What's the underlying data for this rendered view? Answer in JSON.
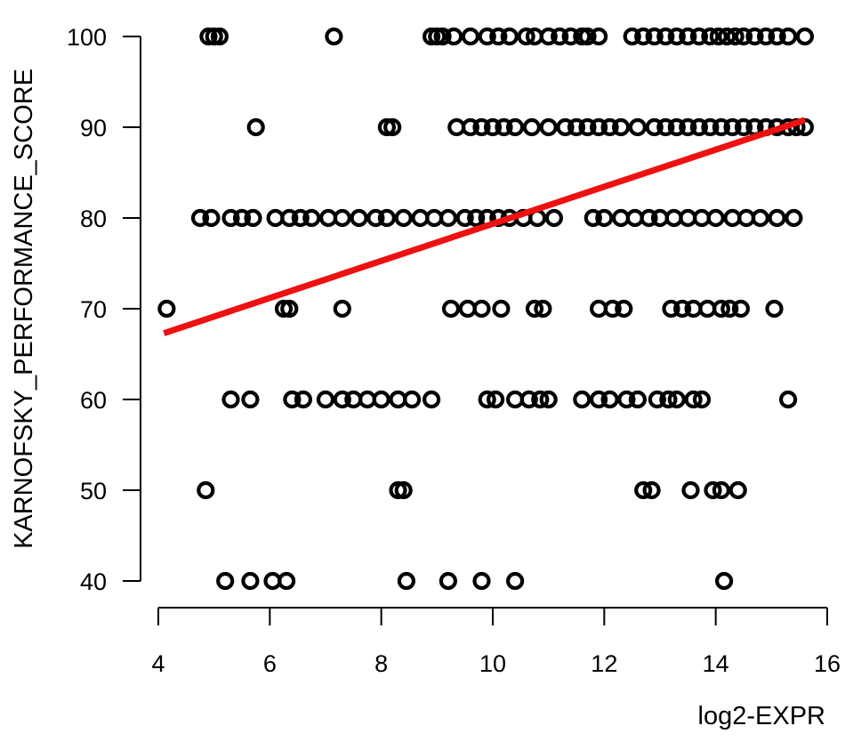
{
  "chart_data": {
    "type": "scatter",
    "title": "",
    "xlabel": "log2-EXPR",
    "ylabel": "KARNOFSKY_PERFORMANCE_SCORE",
    "xlim": [
      4,
      16
    ],
    "ylim": [
      40,
      100
    ],
    "x_ticks": [
      "4",
      "6",
      "8",
      "10",
      "12",
      "14",
      "16"
    ],
    "y_ticks": [
      "40",
      "50",
      "60",
      "70",
      "80",
      "90",
      "100"
    ],
    "grid": false,
    "point_color": "#000000",
    "line_color": "#ee1111",
    "fit_line": {
      "x": [
        4.1,
        15.6
      ],
      "y": [
        67.3,
        90.8
      ]
    },
    "points": [
      {
        "x": 4.9,
        "y": 100
      },
      {
        "x": 5.0,
        "y": 100
      },
      {
        "x": 5.1,
        "y": 100
      },
      {
        "x": 7.15,
        "y": 100
      },
      {
        "x": 8.9,
        "y": 100
      },
      {
        "x": 9.0,
        "y": 100
      },
      {
        "x": 9.1,
        "y": 100
      },
      {
        "x": 9.3,
        "y": 100
      },
      {
        "x": 9.6,
        "y": 100
      },
      {
        "x": 9.9,
        "y": 100
      },
      {
        "x": 10.1,
        "y": 100
      },
      {
        "x": 10.3,
        "y": 100
      },
      {
        "x": 10.6,
        "y": 100
      },
      {
        "x": 10.75,
        "y": 100
      },
      {
        "x": 11.0,
        "y": 100
      },
      {
        "x": 11.2,
        "y": 100
      },
      {
        "x": 11.4,
        "y": 100
      },
      {
        "x": 11.6,
        "y": 100
      },
      {
        "x": 11.7,
        "y": 100
      },
      {
        "x": 11.9,
        "y": 100
      },
      {
        "x": 12.5,
        "y": 100
      },
      {
        "x": 12.7,
        "y": 100
      },
      {
        "x": 12.9,
        "y": 100
      },
      {
        "x": 13.1,
        "y": 100
      },
      {
        "x": 13.3,
        "y": 100
      },
      {
        "x": 13.5,
        "y": 100
      },
      {
        "x": 13.7,
        "y": 100
      },
      {
        "x": 13.9,
        "y": 100
      },
      {
        "x": 14.05,
        "y": 100
      },
      {
        "x": 14.2,
        "y": 100
      },
      {
        "x": 14.35,
        "y": 100
      },
      {
        "x": 14.5,
        "y": 100
      },
      {
        "x": 14.7,
        "y": 100
      },
      {
        "x": 14.9,
        "y": 100
      },
      {
        "x": 15.1,
        "y": 100
      },
      {
        "x": 15.3,
        "y": 100
      },
      {
        "x": 15.6,
        "y": 100
      },
      {
        "x": 5.75,
        "y": 90
      },
      {
        "x": 8.1,
        "y": 90
      },
      {
        "x": 8.2,
        "y": 90
      },
      {
        "x": 9.35,
        "y": 90
      },
      {
        "x": 9.6,
        "y": 90
      },
      {
        "x": 9.8,
        "y": 90
      },
      {
        "x": 10.0,
        "y": 90
      },
      {
        "x": 10.2,
        "y": 90
      },
      {
        "x": 10.4,
        "y": 90
      },
      {
        "x": 10.7,
        "y": 90
      },
      {
        "x": 11.0,
        "y": 90
      },
      {
        "x": 11.3,
        "y": 90
      },
      {
        "x": 11.5,
        "y": 90
      },
      {
        "x": 11.7,
        "y": 90
      },
      {
        "x": 11.9,
        "y": 90
      },
      {
        "x": 12.1,
        "y": 90
      },
      {
        "x": 12.3,
        "y": 90
      },
      {
        "x": 12.6,
        "y": 90
      },
      {
        "x": 12.9,
        "y": 90
      },
      {
        "x": 13.1,
        "y": 90
      },
      {
        "x": 13.3,
        "y": 90
      },
      {
        "x": 13.5,
        "y": 90
      },
      {
        "x": 13.7,
        "y": 90
      },
      {
        "x": 13.9,
        "y": 90
      },
      {
        "x": 14.1,
        "y": 90
      },
      {
        "x": 14.3,
        "y": 90
      },
      {
        "x": 14.5,
        "y": 90
      },
      {
        "x": 14.7,
        "y": 90
      },
      {
        "x": 14.9,
        "y": 90
      },
      {
        "x": 15.1,
        "y": 90
      },
      {
        "x": 15.3,
        "y": 90
      },
      {
        "x": 15.45,
        "y": 90
      },
      {
        "x": 15.6,
        "y": 90
      },
      {
        "x": 4.75,
        "y": 80
      },
      {
        "x": 4.95,
        "y": 80
      },
      {
        "x": 5.3,
        "y": 80
      },
      {
        "x": 5.5,
        "y": 80
      },
      {
        "x": 5.7,
        "y": 80
      },
      {
        "x": 6.1,
        "y": 80
      },
      {
        "x": 6.35,
        "y": 80
      },
      {
        "x": 6.55,
        "y": 80
      },
      {
        "x": 6.75,
        "y": 80
      },
      {
        "x": 7.05,
        "y": 80
      },
      {
        "x": 7.3,
        "y": 80
      },
      {
        "x": 7.6,
        "y": 80
      },
      {
        "x": 7.9,
        "y": 80
      },
      {
        "x": 8.1,
        "y": 80
      },
      {
        "x": 8.4,
        "y": 80
      },
      {
        "x": 8.7,
        "y": 80
      },
      {
        "x": 8.95,
        "y": 80
      },
      {
        "x": 9.2,
        "y": 80
      },
      {
        "x": 9.5,
        "y": 80
      },
      {
        "x": 9.7,
        "y": 80
      },
      {
        "x": 9.9,
        "y": 80
      },
      {
        "x": 10.1,
        "y": 80
      },
      {
        "x": 10.3,
        "y": 80
      },
      {
        "x": 10.55,
        "y": 80
      },
      {
        "x": 10.8,
        "y": 80
      },
      {
        "x": 11.1,
        "y": 80
      },
      {
        "x": 11.8,
        "y": 80
      },
      {
        "x": 12.0,
        "y": 80
      },
      {
        "x": 12.3,
        "y": 80
      },
      {
        "x": 12.55,
        "y": 80
      },
      {
        "x": 12.8,
        "y": 80
      },
      {
        "x": 13.0,
        "y": 80
      },
      {
        "x": 13.25,
        "y": 80
      },
      {
        "x": 13.5,
        "y": 80
      },
      {
        "x": 13.75,
        "y": 80
      },
      {
        "x": 14.0,
        "y": 80
      },
      {
        "x": 14.3,
        "y": 80
      },
      {
        "x": 14.55,
        "y": 80
      },
      {
        "x": 14.8,
        "y": 80
      },
      {
        "x": 15.1,
        "y": 80
      },
      {
        "x": 15.4,
        "y": 80
      },
      {
        "x": 4.15,
        "y": 70
      },
      {
        "x": 6.25,
        "y": 70
      },
      {
        "x": 6.35,
        "y": 70
      },
      {
        "x": 7.3,
        "y": 70
      },
      {
        "x": 9.25,
        "y": 70
      },
      {
        "x": 9.55,
        "y": 70
      },
      {
        "x": 9.8,
        "y": 70
      },
      {
        "x": 10.15,
        "y": 70
      },
      {
        "x": 10.75,
        "y": 70
      },
      {
        "x": 10.9,
        "y": 70
      },
      {
        "x": 11.9,
        "y": 70
      },
      {
        "x": 12.15,
        "y": 70
      },
      {
        "x": 12.35,
        "y": 70
      },
      {
        "x": 13.2,
        "y": 70
      },
      {
        "x": 13.4,
        "y": 70
      },
      {
        "x": 13.6,
        "y": 70
      },
      {
        "x": 13.85,
        "y": 70
      },
      {
        "x": 14.1,
        "y": 70
      },
      {
        "x": 14.25,
        "y": 70
      },
      {
        "x": 14.45,
        "y": 70
      },
      {
        "x": 15.05,
        "y": 70
      },
      {
        "x": 5.3,
        "y": 60
      },
      {
        "x": 5.65,
        "y": 60
      },
      {
        "x": 6.4,
        "y": 60
      },
      {
        "x": 6.6,
        "y": 60
      },
      {
        "x": 7.0,
        "y": 60
      },
      {
        "x": 7.3,
        "y": 60
      },
      {
        "x": 7.5,
        "y": 60
      },
      {
        "x": 7.75,
        "y": 60
      },
      {
        "x": 8.0,
        "y": 60
      },
      {
        "x": 8.3,
        "y": 60
      },
      {
        "x": 8.55,
        "y": 60
      },
      {
        "x": 8.9,
        "y": 60
      },
      {
        "x": 9.9,
        "y": 60
      },
      {
        "x": 10.05,
        "y": 60
      },
      {
        "x": 10.4,
        "y": 60
      },
      {
        "x": 10.65,
        "y": 60
      },
      {
        "x": 10.85,
        "y": 60
      },
      {
        "x": 11.0,
        "y": 60
      },
      {
        "x": 11.6,
        "y": 60
      },
      {
        "x": 11.9,
        "y": 60
      },
      {
        "x": 12.1,
        "y": 60
      },
      {
        "x": 12.4,
        "y": 60
      },
      {
        "x": 12.6,
        "y": 60
      },
      {
        "x": 12.95,
        "y": 60
      },
      {
        "x": 13.15,
        "y": 60
      },
      {
        "x": 13.3,
        "y": 60
      },
      {
        "x": 13.6,
        "y": 60
      },
      {
        "x": 13.75,
        "y": 60
      },
      {
        "x": 15.3,
        "y": 60
      },
      {
        "x": 4.85,
        "y": 50
      },
      {
        "x": 8.3,
        "y": 50
      },
      {
        "x": 8.4,
        "y": 50
      },
      {
        "x": 12.7,
        "y": 50
      },
      {
        "x": 12.85,
        "y": 50
      },
      {
        "x": 13.55,
        "y": 50
      },
      {
        "x": 13.95,
        "y": 50
      },
      {
        "x": 14.1,
        "y": 50
      },
      {
        "x": 14.4,
        "y": 50
      },
      {
        "x": 5.2,
        "y": 40
      },
      {
        "x": 5.65,
        "y": 40
      },
      {
        "x": 6.05,
        "y": 40
      },
      {
        "x": 6.3,
        "y": 40
      },
      {
        "x": 8.45,
        "y": 40
      },
      {
        "x": 9.2,
        "y": 40
      },
      {
        "x": 9.8,
        "y": 40
      },
      {
        "x": 10.4,
        "y": 40
      },
      {
        "x": 14.15,
        "y": 40
      }
    ]
  }
}
